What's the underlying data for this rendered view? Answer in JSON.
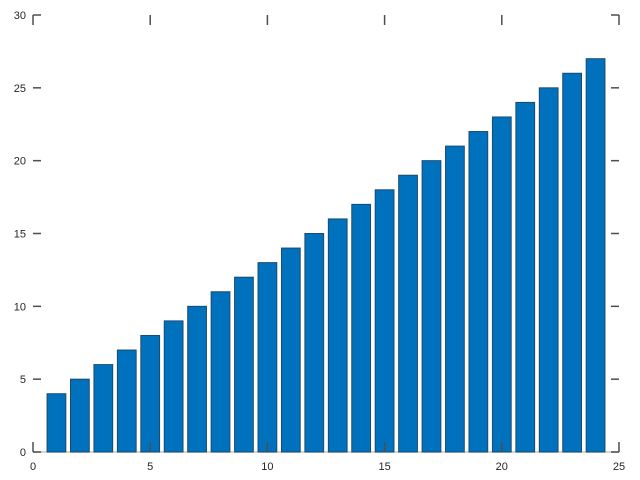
{
  "chart_data": {
    "type": "bar",
    "x": [
      1,
      2,
      3,
      4,
      5,
      6,
      7,
      8,
      9,
      10,
      11,
      12,
      13,
      14,
      15,
      16,
      17,
      18,
      19,
      20,
      21,
      22,
      23,
      24
    ],
    "values": [
      4,
      5,
      6,
      7,
      8,
      9,
      10,
      11,
      12,
      13,
      14,
      15,
      16,
      17,
      18,
      19,
      20,
      21,
      22,
      23,
      24,
      25,
      26,
      27
    ],
    "xlim": [
      0,
      25
    ],
    "ylim": [
      0,
      30
    ],
    "xticks": [
      "0",
      "5",
      "10",
      "15",
      "20",
      "25"
    ],
    "yticks": [
      "0",
      "5",
      "10",
      "15",
      "20",
      "25",
      "30"
    ],
    "title": "",
    "xlabel": "",
    "ylabel": "",
    "grid": false,
    "bar_color": "#0072bd",
    "edge_color": "#1a4a6e"
  }
}
